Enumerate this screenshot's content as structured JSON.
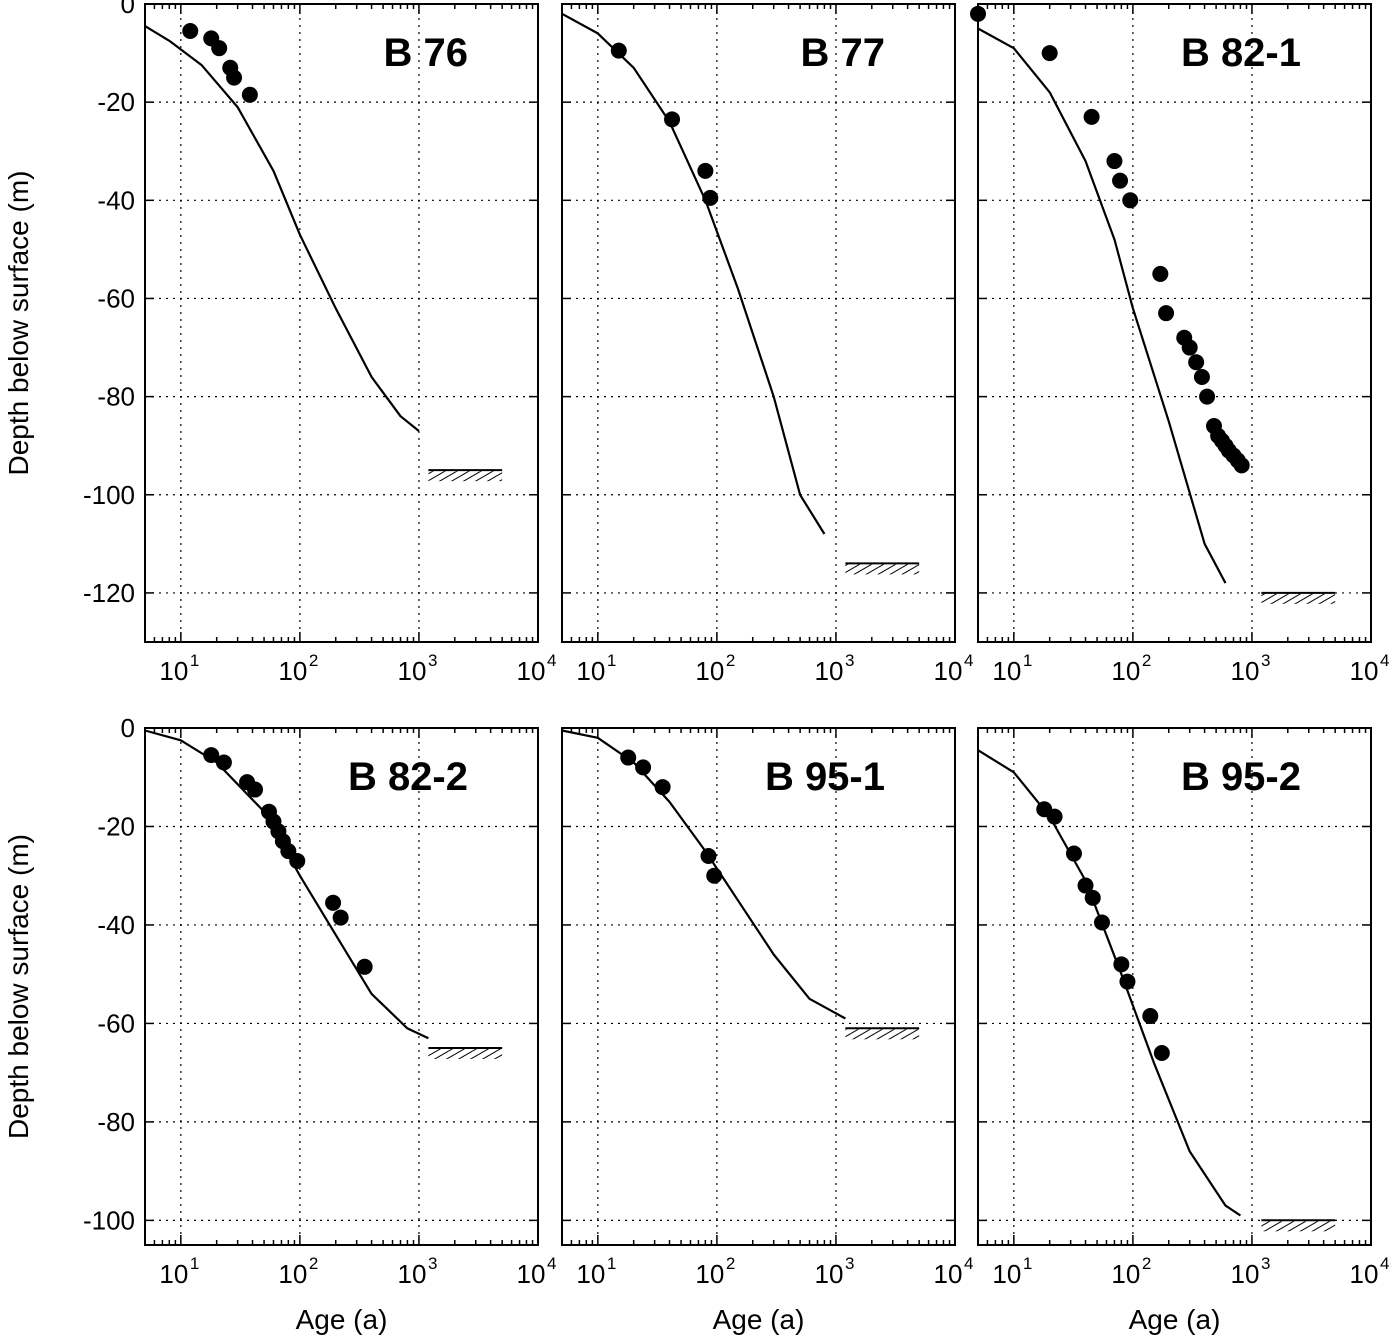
{
  "chart_data": [
    {
      "type": "scatter",
      "label": "B 76",
      "xscale": "log",
      "xlim": [
        5,
        10000
      ],
      "ylim": [
        -130,
        0
      ],
      "xtick_labels": [
        "10",
        "10",
        "10",
        "10"
      ],
      "xtick_exponents": [
        "1",
        "2",
        "3",
        "4"
      ],
      "ytick_labels": [
        "0",
        "-20",
        "-40",
        "-60",
        "-80",
        "-100",
        "-120"
      ],
      "ylabel": "Depth below surface (m)",
      "xlabel": "",
      "grid": true,
      "model_curve": [
        [
          5,
          -4.5
        ],
        [
          8,
          -7.5
        ],
        [
          15,
          -12.5
        ],
        [
          30,
          -21
        ],
        [
          60,
          -34
        ],
        [
          100,
          -47
        ],
        [
          200,
          -62
        ],
        [
          400,
          -76
        ],
        [
          700,
          -84
        ],
        [
          1000,
          -87
        ]
      ],
      "points": [
        [
          12,
          -5.5
        ],
        [
          18,
          -7
        ],
        [
          21,
          -9
        ],
        [
          26,
          -13
        ],
        [
          28,
          -15
        ],
        [
          38,
          -18.5
        ]
      ],
      "firn_ice_boundary": {
        "depth": -96,
        "xrange": [
          1200,
          5000
        ]
      }
    },
    {
      "type": "scatter",
      "label": "B 77",
      "xscale": "log",
      "xlim": [
        5,
        10000
      ],
      "ylim": [
        -130,
        0
      ],
      "xtick_labels": [
        "10",
        "10",
        "10",
        "10"
      ],
      "xtick_exponents": [
        "1",
        "2",
        "3",
        "4"
      ],
      "grid": true,
      "model_curve": [
        [
          5,
          -2
        ],
        [
          10,
          -6
        ],
        [
          20,
          -13
        ],
        [
          40,
          -24
        ],
        [
          80,
          -40
        ],
        [
          150,
          -58
        ],
        [
          300,
          -80
        ],
        [
          500,
          -100
        ],
        [
          800,
          -108
        ]
      ],
      "points": [
        [
          15,
          -9.5
        ],
        [
          42,
          -23.5
        ],
        [
          80,
          -34
        ],
        [
          88,
          -39.5
        ]
      ],
      "firn_ice_boundary": {
        "depth": -115,
        "xrange": [
          1200,
          5000
        ]
      }
    },
    {
      "type": "scatter",
      "label": "B 82-1",
      "xscale": "log",
      "xlim": [
        5,
        10000
      ],
      "ylim": [
        -130,
        0
      ],
      "xtick_labels": [
        "10",
        "10",
        "10",
        "10"
      ],
      "xtick_exponents": [
        "1",
        "2",
        "3",
        "4"
      ],
      "grid": true,
      "model_curve": [
        [
          5,
          -5
        ],
        [
          10,
          -9
        ],
        [
          20,
          -18
        ],
        [
          40,
          -32
        ],
        [
          70,
          -48
        ],
        [
          100,
          -62
        ],
        [
          200,
          -85
        ],
        [
          400,
          -110
        ],
        [
          600,
          -118
        ]
      ],
      "points": [
        [
          5,
          -2
        ],
        [
          20,
          -10
        ],
        [
          45,
          -23
        ],
        [
          70,
          -32
        ],
        [
          78,
          -36
        ],
        [
          95,
          -40
        ],
        [
          170,
          -55
        ],
        [
          190,
          -63
        ],
        [
          270,
          -68
        ],
        [
          300,
          -70
        ],
        [
          340,
          -73
        ],
        [
          380,
          -76
        ],
        [
          420,
          -80
        ],
        [
          480,
          -86
        ],
        [
          520,
          -88
        ],
        [
          560,
          -89
        ],
        [
          600,
          -90
        ],
        [
          640,
          -91
        ],
        [
          700,
          -92
        ],
        [
          760,
          -93
        ],
        [
          820,
          -94
        ]
      ],
      "firn_ice_boundary": {
        "depth": -121,
        "xrange": [
          1200,
          5000
        ]
      }
    },
    {
      "type": "scatter",
      "label": "B 82-2",
      "xscale": "log",
      "xlim": [
        5,
        10000
      ],
      "ylim": [
        -105,
        0
      ],
      "xtick_labels": [
        "10",
        "10",
        "10",
        "10"
      ],
      "xtick_exponents": [
        "1",
        "2",
        "3",
        "4"
      ],
      "ytick_labels": [
        "0",
        "-20",
        "-40",
        "-60",
        "-80",
        "-100"
      ],
      "ylabel": "Depth below surface (m)",
      "xlabel": "Age (a)",
      "grid": true,
      "model_curve": [
        [
          5,
          -0.5
        ],
        [
          10,
          -2.5
        ],
        [
          20,
          -7
        ],
        [
          50,
          -17
        ],
        [
          100,
          -30
        ],
        [
          200,
          -42
        ],
        [
          400,
          -54
        ],
        [
          800,
          -61
        ],
        [
          1200,
          -63
        ]
      ],
      "points": [
        [
          18,
          -5.5
        ],
        [
          23,
          -7
        ],
        [
          36,
          -11
        ],
        [
          42,
          -12.5
        ],
        [
          55,
          -17
        ],
        [
          60,
          -19
        ],
        [
          66,
          -21
        ],
        [
          72,
          -23
        ],
        [
          80,
          -25
        ],
        [
          95,
          -27
        ],
        [
          190,
          -35.5
        ],
        [
          220,
          -38.5
        ],
        [
          350,
          -48.5
        ]
      ],
      "firn_ice_boundary": {
        "depth": -66,
        "xrange": [
          1200,
          5000
        ]
      }
    },
    {
      "type": "scatter",
      "label": "B 95-1",
      "xscale": "log",
      "xlim": [
        5,
        10000
      ],
      "ylim": [
        -105,
        0
      ],
      "xtick_labels": [
        "10",
        "10",
        "10",
        "10"
      ],
      "xtick_exponents": [
        "1",
        "2",
        "3",
        "4"
      ],
      "xlabel": "Age (a)",
      "grid": true,
      "model_curve": [
        [
          5,
          -0.5
        ],
        [
          10,
          -2
        ],
        [
          20,
          -7
        ],
        [
          40,
          -15
        ],
        [
          80,
          -25
        ],
        [
          150,
          -35
        ],
        [
          300,
          -46
        ],
        [
          600,
          -55
        ],
        [
          1200,
          -59
        ]
      ],
      "points": [
        [
          18,
          -6
        ],
        [
          24,
          -8
        ],
        [
          35,
          -12
        ],
        [
          85,
          -26
        ],
        [
          95,
          -30
        ]
      ],
      "firn_ice_boundary": {
        "depth": -62,
        "xrange": [
          1200,
          5000
        ]
      }
    },
    {
      "type": "scatter",
      "label": "B 95-2",
      "xscale": "log",
      "xlim": [
        5,
        10000
      ],
      "ylim": [
        -105,
        0
      ],
      "xtick_labels": [
        "10",
        "10",
        "10",
        "10"
      ],
      "xtick_exponents": [
        "1",
        "2",
        "3",
        "4"
      ],
      "xlabel": "Age (a)",
      "grid": true,
      "model_curve": [
        [
          5,
          -4.5
        ],
        [
          10,
          -9
        ],
        [
          20,
          -18
        ],
        [
          40,
          -31
        ],
        [
          80,
          -50
        ],
        [
          150,
          -68
        ],
        [
          300,
          -86
        ],
        [
          600,
          -97
        ],
        [
          800,
          -99
        ]
      ],
      "points": [
        [
          18,
          -16.5
        ],
        [
          22,
          -18
        ],
        [
          32,
          -25.5
        ],
        [
          40,
          -32
        ],
        [
          46,
          -34.5
        ],
        [
          55,
          -39.5
        ],
        [
          80,
          -48
        ],
        [
          90,
          -51.5
        ],
        [
          140,
          -58.5
        ],
        [
          175,
          -66
        ]
      ],
      "firn_ice_boundary": {
        "depth": -101,
        "xrange": [
          1200,
          5000
        ]
      }
    }
  ]
}
